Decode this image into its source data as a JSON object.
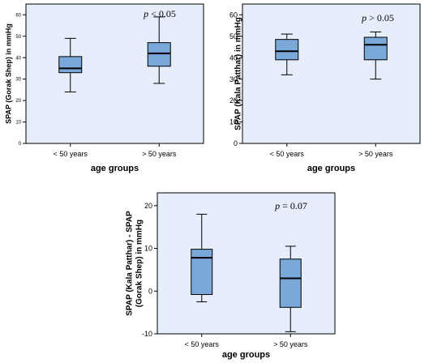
{
  "chart_data": [
    {
      "type": "box",
      "xlabel": "age groups",
      "ylabel": "SPAP (Gorak Shep) in mmHg",
      "ylim": [
        0,
        65
      ],
      "yticks": [
        0,
        10,
        20,
        30,
        40,
        50,
        60
      ],
      "annotation": {
        "italic": "p",
        "rest": " < 0.05"
      },
      "categories": [
        "< 50 years",
        "> 50 years"
      ],
      "boxes": [
        {
          "min": 24,
          "q1": 33,
          "median": 35,
          "q3": 40.5,
          "max": 49
        },
        {
          "min": 28,
          "q1": 36,
          "median": 42,
          "q3": 47,
          "max": 59
        }
      ]
    },
    {
      "type": "box",
      "xlabel": "age groups",
      "ylabel": "SPAP (Kala Patthar) in mmHg",
      "ylim": [
        0,
        65
      ],
      "yticks": [
        0,
        10,
        20,
        30,
        40,
        50,
        60
      ],
      "annotation": {
        "italic": "p",
        "rest": " > 0.05"
      },
      "categories": [
        "< 50 years",
        "> 50 years"
      ],
      "boxes": [
        {
          "min": 32,
          "q1": 39,
          "median": 43,
          "q3": 48.5,
          "max": 51
        },
        {
          "min": 30,
          "q1": 39,
          "median": 46,
          "q3": 49.5,
          "max": 52
        }
      ]
    },
    {
      "type": "box",
      "xlabel": "age groups",
      "ylabel": [
        "SPAP (Kala Patthar) - SPAP",
        "(Gorak Shep) in mmHg"
      ],
      "ylim": [
        -10,
        23
      ],
      "yticks": [
        -10,
        0,
        10,
        20
      ],
      "annotation": {
        "italic": "p",
        "rest": " = 0.07"
      },
      "categories": [
        "< 50 years",
        "> 50 years"
      ],
      "boxes": [
        {
          "min": -2.5,
          "q1": -0.8,
          "median": 7.8,
          "q3": 9.8,
          "max": 18
        },
        {
          "min": -9.5,
          "q1": -3.8,
          "median": 3,
          "q3": 7.5,
          "max": 10.5
        }
      ]
    }
  ],
  "style": {
    "panel_fill": "#e6eefb",
    "box_fill": "#7aa8d8",
    "border": "#000000"
  }
}
